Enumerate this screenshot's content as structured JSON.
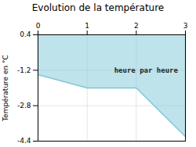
{
  "chart_data": {
    "type": "area",
    "title": "Evolution de la température",
    "ylabel": "Température en °C",
    "x": [
      0,
      1,
      2,
      3
    ],
    "values": [
      -1.4,
      -2.0,
      -2.0,
      -4.2
    ],
    "fill_top": 0.4,
    "color": "#7ec8d8",
    "xlim": [
      0,
      3
    ],
    "xticks": [
      0,
      1,
      2,
      3
    ],
    "ylim": [
      -4.4,
      0.4
    ],
    "yticks": [
      0.4,
      -1.2,
      -2.8,
      -4.4
    ],
    "grid": true,
    "annotations": [
      {
        "text": "heure par heure",
        "x": 1.55,
        "y": -1.1
      }
    ]
  }
}
